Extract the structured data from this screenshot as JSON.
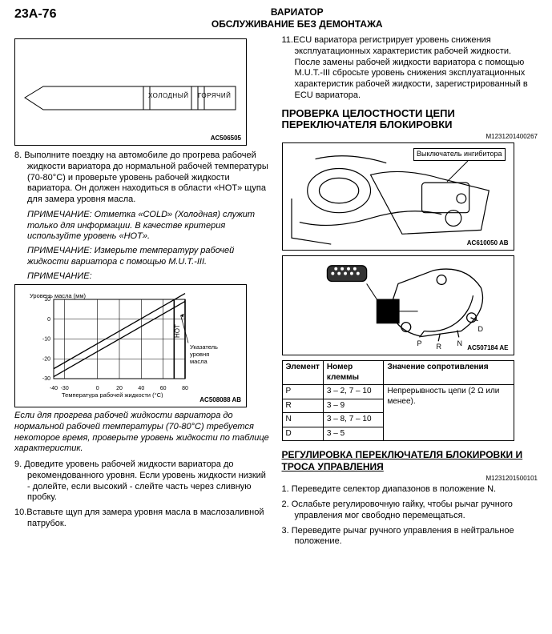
{
  "page_number": "23A-76",
  "header_title1": "ВАРИАТОР",
  "header_title2": "ОБСЛУЖИВАНИЕ БЕЗ ДЕМОНТАЖА",
  "dipstick": {
    "cold": "ХОЛОДНЫЙ",
    "hot": "ГОРЯЧИЙ",
    "code": "AC506505",
    "box_border_color": "#000000"
  },
  "left": {
    "step8_num": "8.",
    "step8": "Выполните поездку на автомобиле до прогрева рабочей жидкости вариатора до нормальной рабочей температуры (70-80°C) и проверьте уровень рабочей жидкости вариатора. Он должен находиться в области «HOT» щупа для замера уровня масла.",
    "note1": "ПРИМЕЧАНИЕ: Отметка «COLD» (Холодная) служит только для информации. В качестве критерия используйте уровень «HOT».",
    "note2": "ПРИМЕЧАНИЕ: Измерьте температуру рабочей жидкости вариатора с помощью M.U.T.-III.",
    "note3_label": "ПРИМЕЧАНИЕ:",
    "chart": {
      "type": "line",
      "ylabel": "Уровень масла (мм)",
      "xlabel": "Температура рабочей жидкости (°C)",
      "code": "AC508088 AB",
      "xticks": [
        -40,
        -30,
        0,
        20,
        40,
        60,
        80
      ],
      "yticks": [
        -30,
        -20,
        -10,
        0,
        10
      ],
      "xlim": [
        -40,
        80
      ],
      "ylim": [
        -30,
        10
      ],
      "series": [
        {
          "pts": [
            [
              -40,
              -29
            ],
            [
              80,
              9
            ]
          ],
          "color": "#000000",
          "width": 1.3
        },
        {
          "pts": [
            [
              -40,
              -25
            ],
            [
              80,
              13
            ]
          ],
          "color": "#000000",
          "width": 1.3
        }
      ],
      "grid_color": "#000000",
      "hot_label": "HOT",
      "pointer_label": "Указатель\nуровня\nмасла"
    },
    "chart_caption": "Если для прогрева рабочей жидкости вариатора до нормальной рабочей температуры (70-80°C) требуется некоторое время, проверьте уровень жидкости по таблице характеристик.",
    "step9_num": "9.",
    "step9": "Доведите уровень рабочей жидкости вариатора до рекомендованного уровня. Если уровень жидкости низкий - долейте, если высокий - слейте часть через сливную пробку.",
    "step10_num": "10.",
    "step10": "Вставьте щуп для замера уровня масла в маслозаливной патрубок."
  },
  "right": {
    "step11_num": "11.",
    "step11": "ECU вариатора регистрирует уровень снижения эксплуатационных характеристик рабочей жидкости. После замены рабочей жидкости вариатора с помощью M.U.T.-III сбросьте уровень снижения эксплуатационных характеристик рабочей жидкости, зарегистрированный в ECU вариатора.",
    "h_check": "ПРОВЕРКА ЦЕЛОСТНОСТИ ЦЕПИ ПЕРЕКЛЮЧАТЕЛЯ БЛОКИРОВКИ",
    "mcode1": "M1231201400267",
    "diag1_label": "Выключатель ингибитора",
    "diag1_code": "AC610050 AB",
    "diag2_code": "AC507184 AE",
    "diag2_P": "P",
    "diag2_R": "R",
    "diag2_N": "N",
    "diag2_D": "D",
    "table": {
      "headers": [
        "Элемент",
        "Номер клеммы",
        "Значение сопротивления"
      ],
      "rows": [
        [
          "P",
          "3 – 2, 7 – 10",
          "Непрерывность цепи (2 Ω или менее)."
        ],
        [
          "R",
          "3 – 9",
          ""
        ],
        [
          "N",
          "3 – 8, 7 – 10",
          ""
        ],
        [
          "D",
          "3 – 5",
          ""
        ]
      ],
      "resistance_rowspan": 4
    },
    "h_adjust": "РЕГУЛИРОВКА ПЕРЕКЛЮЧАТЕЛЯ БЛОКИРОВКИ И ТРОСА УПРАВЛЕНИЯ",
    "mcode2": "M1231201500101",
    "adj1_num": "1.",
    "adj1": "Переведите селектор диапазонов в положение N.",
    "adj2_num": "2.",
    "adj2": "Ослабьте регулировочную гайку, чтобы рычаг ручного управления мог свободно перемещаться.",
    "adj3_num": "3.",
    "adj3": "Переведите рычаг ручного управления в нейтральное положение."
  }
}
